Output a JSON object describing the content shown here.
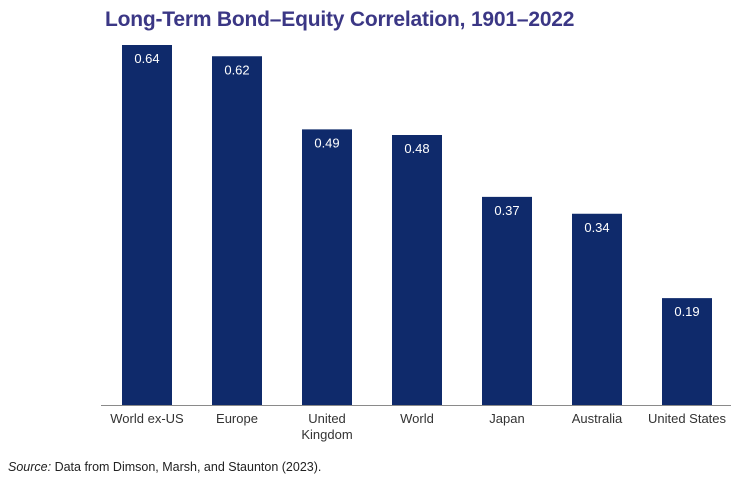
{
  "title": "Long-Term Bond–Equity Correlation, 1901–2022",
  "source": {
    "label": "Source:",
    "text": "Data from Dimson, Marsh, and Staunton (2023)."
  },
  "colors": {
    "bar": "#0f2a6b",
    "title": "#3b3785",
    "bar_label": "#ffffff",
    "axis": "#8a8a8a",
    "tick_label": "#333333"
  },
  "chart_data": {
    "type": "bar",
    "title": "Long-Term Bond–Equity Correlation, 1901–2022",
    "xlabel": "",
    "ylabel": "",
    "ylim": [
      0,
      0.64
    ],
    "grid": false,
    "categories": [
      "World ex-US",
      "Europe",
      "United Kingdom",
      "World",
      "Japan",
      "Australia",
      "United States"
    ],
    "category_label_lines": [
      [
        "World ex-US"
      ],
      [
        "Europe"
      ],
      [
        "United",
        "Kingdom"
      ],
      [
        "World"
      ],
      [
        "Japan"
      ],
      [
        "Australia"
      ],
      [
        "United States"
      ]
    ],
    "values": [
      0.64,
      0.62,
      0.49,
      0.48,
      0.37,
      0.34,
      0.19
    ],
    "data_labels": [
      "0.64",
      "0.62",
      "0.49",
      "0.48",
      "0.37",
      "0.34",
      "0.19"
    ]
  }
}
